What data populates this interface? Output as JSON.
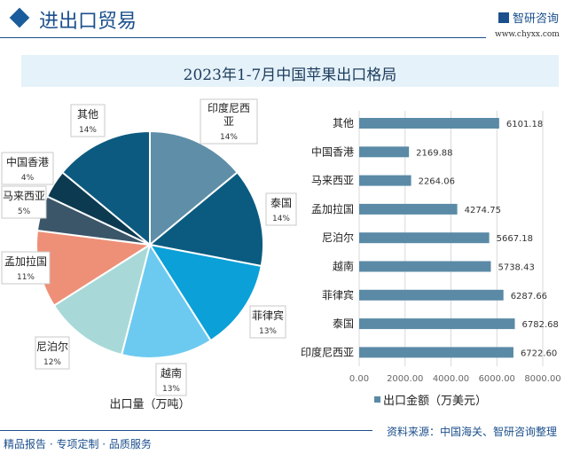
{
  "header": {
    "section_title": "进出口贸易",
    "logo_text": "智研咨询",
    "logo_url": "www.chyxx.com"
  },
  "title": "2023年1-7月中国苹果出口格局",
  "footer": {
    "tagline": "精品报告 · 专项定制 · 品质服务",
    "source": "资料来源：中国海关、智研咨询整理"
  },
  "chart_data": [
    {
      "type": "pie",
      "xlabel": "出口量（万吨）",
      "start": "top",
      "direction": "clockwise",
      "categories": [
        "印度尼西亚",
        "泰国",
        "菲律宾",
        "越南",
        "尼泊尔",
        "孟加拉国",
        "马来西亚",
        "中国香港",
        "其他"
      ],
      "values": [
        14,
        14,
        13,
        13,
        12,
        11,
        5,
        4,
        14
      ],
      "labels": [
        "14%",
        "14%",
        "13%",
        "13%",
        "12%",
        "11%",
        "5%",
        "4%",
        "14%"
      ],
      "colors": [
        "#5e8ea8",
        "#0b5b80",
        "#0ba0d8",
        "#6ccaf0",
        "#a8d9d8",
        "#ee9077",
        "#3b5668",
        "#0c3a50",
        "#0d5a80"
      ]
    },
    {
      "type": "bar",
      "orientation": "horizontal",
      "categories": [
        "其他",
        "中国香港",
        "马来西亚",
        "孟加拉国",
        "尼泊尔",
        "越南",
        "菲律宾",
        "泰国",
        "印度尼西亚"
      ],
      "series": [
        {
          "name": "出口金额（万美元）",
          "values": [
            6101.18,
            2169.88,
            2264.06,
            4274.75,
            5667.18,
            5738.43,
            6287.66,
            6782.68,
            6722.6
          ],
          "color": "#5a8aa6"
        }
      ],
      "value_labels": [
        "6101.18",
        "2169.88",
        "2264.06",
        "4274.75",
        "5667.18",
        "5738.43",
        "6287.66",
        "6782.68",
        "6722.60"
      ],
      "xlim": [
        0,
        8000
      ],
      "xticks": [
        "0.00",
        "2000.00",
        "4000.00",
        "6000.00",
        "8000.00"
      ],
      "grid": true,
      "legend": "bottom"
    }
  ]
}
